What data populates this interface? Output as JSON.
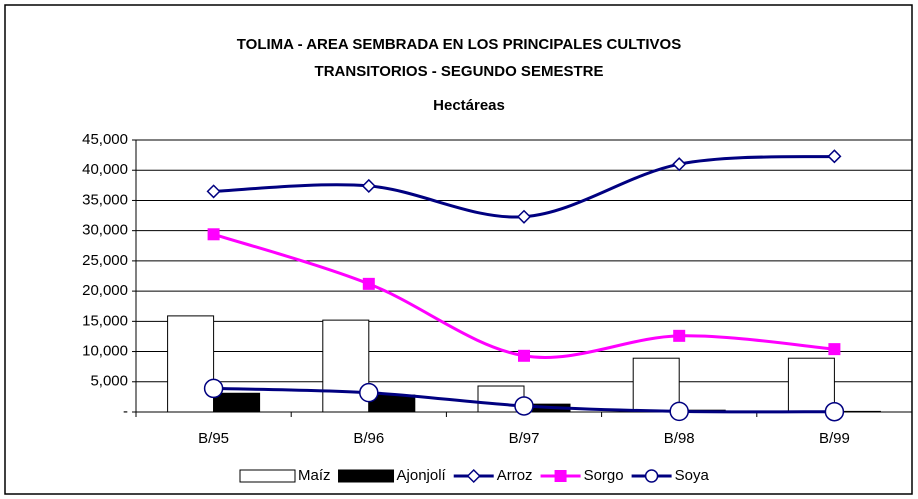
{
  "chart_data": {
    "type": "bar-line",
    "title": "TOLIMA - AREA SEMBRADA EN LOS PRINCIPALES CULTIVOS",
    "subtitle": "TRANSITORIOS - SEGUNDO SEMESTRE",
    "y_label": "Hectáreas",
    "categories": [
      "B/95",
      "B/96",
      "B/97",
      "B/98",
      "B/99"
    ],
    "series": [
      {
        "name": "Maíz",
        "kind": "bar",
        "color": "#ffffff",
        "values": [
          15900,
          15200,
          4300,
          8900,
          8900
        ]
      },
      {
        "name": "Ajonjolí",
        "kind": "bar",
        "color": "#000000",
        "values": [
          3100,
          2800,
          1300,
          300,
          100
        ]
      },
      {
        "name": "Arroz",
        "kind": "line",
        "color": "#000080",
        "marker": "diamond",
        "values": [
          36500,
          37400,
          32300,
          41000,
          42300
        ]
      },
      {
        "name": "Sorgo",
        "kind": "line",
        "color": "#ff00ff",
        "marker": "square",
        "values": [
          29400,
          21200,
          9300,
          12600,
          10400
        ]
      },
      {
        "name": "Soya",
        "kind": "line",
        "color": "#000080",
        "marker": "circle",
        "values": [
          3900,
          3200,
          1000,
          100,
          50
        ]
      }
    ],
    "ylim": [
      0,
      45000
    ],
    "yticks": [
      {
        "value": 0,
        "label": "-"
      },
      {
        "value": 5000,
        "label": "5,000"
      },
      {
        "value": 10000,
        "label": "10,000"
      },
      {
        "value": 15000,
        "label": "15,000"
      },
      {
        "value": 20000,
        "label": "20,000"
      },
      {
        "value": 25000,
        "label": "25,000"
      },
      {
        "value": 30000,
        "label": "30,000"
      },
      {
        "value": 35000,
        "label": "35,000"
      },
      {
        "value": 40000,
        "label": "40,000"
      },
      {
        "value": 45000,
        "label": "45,000"
      }
    ],
    "grid": true
  }
}
